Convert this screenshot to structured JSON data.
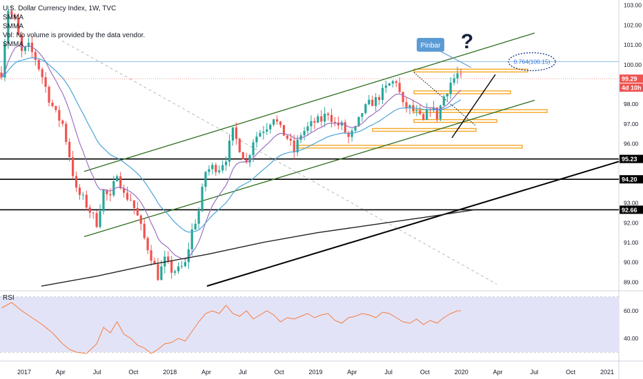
{
  "window": {
    "title": "U.S. Dollar Currency Index, 1W, TVC"
  },
  "legend": {
    "lines": [
      "SMMA",
      "SMMA",
      "Vol: No volume is provided by the data vendor.",
      "SMMA"
    ]
  },
  "rsi_panel": {
    "label": "RSI",
    "ticks": [
      "60.00",
      "40.00"
    ]
  },
  "badges": {
    "price": "99.29",
    "countdown": "4d 10h",
    "levels": [
      "95.23",
      "94.20",
      "92.66"
    ]
  },
  "annotations": {
    "pinbar": "Pinbar",
    "question": "?",
    "fib": "0.764(100.15)"
  },
  "colors": {
    "up": "#26a69a",
    "down": "#ef5350",
    "smma_fast": "#9c6fbf",
    "smma_mid": "#4ba3d9",
    "smma_slow": "#222222",
    "rsi": "#f57c3a",
    "rsi_band": "#e3e3f7",
    "zone": "#f5a623",
    "channel": "#2e6e1e",
    "price_line": "#ef5350"
  },
  "chart_data": {
    "type": "candlestick",
    "title": "U.S. Dollar Currency Index, 1W, TVC",
    "y_axis": {
      "ticks": [
        "103.00",
        "102.00",
        "101.00",
        "100.00",
        "98.00",
        "97.00",
        "96.00",
        "93.00",
        "92.00",
        "91.00",
        "90.00",
        "89.00"
      ],
      "ylim": [
        88.7,
        103.2
      ]
    },
    "x_axis": {
      "ticks": [
        "2017",
        "Apr",
        "Jul",
        "Oct",
        "2018",
        "Apr",
        "Jul",
        "Oct",
        "2019",
        "Apr",
        "Jul",
        "Oct",
        "2020",
        "Apr",
        "Jul",
        "Oct",
        "2021"
      ]
    },
    "last_price": 99.29,
    "horizontal_levels": [
      95.23,
      94.2,
      92.66
    ],
    "fib_level": 100.15,
    "close_path": [
      [
        0,
        99.6
      ],
      [
        2,
        102.8
      ],
      [
        4,
        102.2
      ],
      [
        6,
        100.6
      ],
      [
        8,
        100.9
      ],
      [
        10,
        100.3
      ],
      [
        12,
        99.4
      ],
      [
        14,
        98.3
      ],
      [
        16,
        97.5
      ],
      [
        18,
        97.0
      ],
      [
        20,
        95.4
      ],
      [
        22,
        93.6
      ],
      [
        24,
        93.2
      ],
      [
        26,
        92.6
      ],
      [
        28,
        92.0
      ],
      [
        30,
        93.6
      ],
      [
        32,
        93.2
      ],
      [
        34,
        94.6
      ],
      [
        36,
        93.4
      ],
      [
        38,
        93.2
      ],
      [
        40,
        92.3
      ],
      [
        42,
        91.2
      ],
      [
        44,
        90.3
      ],
      [
        46,
        89.3
      ],
      [
        48,
        90.1
      ],
      [
        50,
        89.6
      ],
      [
        52,
        89.6
      ],
      [
        54,
        89.9
      ],
      [
        56,
        91.6
      ],
      [
        58,
        92.6
      ],
      [
        60,
        94.6
      ],
      [
        62,
        94.8
      ],
      [
        64,
        94.8
      ],
      [
        66,
        95.3
      ],
      [
        68,
        96.6
      ],
      [
        70,
        95.8
      ],
      [
        72,
        95.0
      ],
      [
        74,
        96.2
      ],
      [
        76,
        96.6
      ],
      [
        78,
        96.9
      ],
      [
        80,
        97.4
      ],
      [
        82,
        96.7
      ],
      [
        84,
        96.3
      ],
      [
        86,
        95.6
      ],
      [
        88,
        96.5
      ],
      [
        90,
        96.8
      ],
      [
        92,
        97.1
      ],
      [
        94,
        97.2
      ],
      [
        96,
        97.6
      ],
      [
        98,
        97.0
      ],
      [
        100,
        96.9
      ],
      [
        102,
        96.3
      ],
      [
        104,
        96.7
      ],
      [
        106,
        97.6
      ],
      [
        108,
        98.0
      ],
      [
        110,
        98.2
      ],
      [
        112,
        98.6
      ],
      [
        114,
        99.0
      ],
      [
        116,
        99.2
      ],
      [
        118,
        97.9
      ],
      [
        120,
        97.8
      ],
      [
        122,
        97.5
      ],
      [
        124,
        97.1
      ],
      [
        126,
        97.9
      ],
      [
        128,
        97.4
      ],
      [
        130,
        98.4
      ],
      [
        132,
        99.1
      ],
      [
        134,
        99.5
      ],
      [
        135,
        99.29
      ]
    ],
    "rsi_path": [
      [
        0,
        62
      ],
      [
        3,
        66
      ],
      [
        6,
        60
      ],
      [
        9,
        55
      ],
      [
        12,
        50
      ],
      [
        15,
        44
      ],
      [
        18,
        36
      ],
      [
        20,
        32
      ],
      [
        22,
        30
      ],
      [
        25,
        29
      ],
      [
        28,
        36
      ],
      [
        30,
        48
      ],
      [
        32,
        44
      ],
      [
        34,
        52
      ],
      [
        36,
        43
      ],
      [
        38,
        40
      ],
      [
        40,
        35
      ],
      [
        42,
        33
      ],
      [
        44,
        29
      ],
      [
        46,
        32
      ],
      [
        48,
        36
      ],
      [
        50,
        37
      ],
      [
        52,
        40
      ],
      [
        54,
        38
      ],
      [
        56,
        45
      ],
      [
        58,
        52
      ],
      [
        60,
        58
      ],
      [
        62,
        60
      ],
      [
        64,
        58
      ],
      [
        66,
        64
      ],
      [
        68,
        58
      ],
      [
        70,
        56
      ],
      [
        72,
        60
      ],
      [
        74,
        54
      ],
      [
        76,
        57
      ],
      [
        78,
        60
      ],
      [
        80,
        57
      ],
      [
        82,
        52
      ],
      [
        84,
        55
      ],
      [
        86,
        54
      ],
      [
        88,
        56
      ],
      [
        90,
        58
      ],
      [
        92,
        55
      ],
      [
        94,
        57
      ],
      [
        96,
        58
      ],
      [
        98,
        53
      ],
      [
        100,
        51
      ],
      [
        102,
        55
      ],
      [
        104,
        56
      ],
      [
        106,
        58
      ],
      [
        108,
        57
      ],
      [
        110,
        55
      ],
      [
        112,
        59
      ],
      [
        114,
        58
      ],
      [
        116,
        55
      ],
      [
        118,
        52
      ],
      [
        120,
        51
      ],
      [
        122,
        54
      ],
      [
        124,
        50
      ],
      [
        126,
        53
      ],
      [
        128,
        51
      ],
      [
        130,
        55
      ],
      [
        132,
        58
      ],
      [
        134,
        60
      ],
      [
        135,
        60
      ]
    ],
    "rsi_ylim": [
      30,
      70
    ]
  }
}
